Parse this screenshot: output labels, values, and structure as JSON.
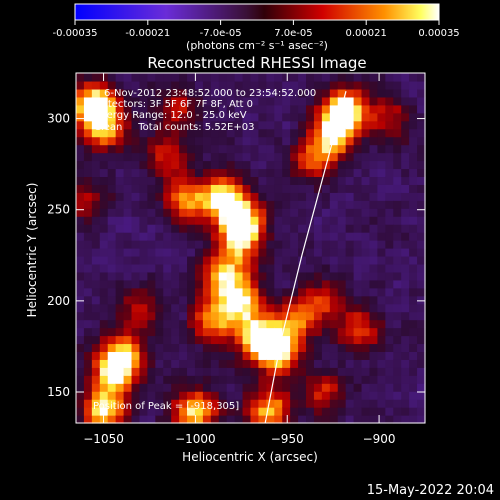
{
  "chart_data": {
    "type": "heatmap",
    "title": "Reconstructed RHESSI Image",
    "colorbar": {
      "ticks": [
        "-0.00035",
        "-0.00021",
        "-7.0e-05",
        "7.0e-05",
        "0.00021",
        "0.00035"
      ],
      "range": [
        -0.00035,
        0.00035
      ],
      "units": "(photons cm⁻² s⁻¹ asec⁻²)"
    },
    "xlabel": "Heliocentric X (arcsec)",
    "ylabel": "Heliocentric Y (arcsec)",
    "xlim": [
      -1065,
      -875
    ],
    "ylim": [
      133,
      325
    ],
    "xticks": [
      -1050,
      -1000,
      -950,
      -900
    ],
    "yticks": [
      150,
      200,
      250,
      300
    ],
    "annotations": [
      "6-Nov-2012 23:48:52.000 to 23:54:52.000",
      "Detectors: 3F 5F 6F 7F 8F, Att 0",
      "Energy Range: 12.0 - 25.0 keV",
      "Clean     Total counts: 5.52E+03"
    ],
    "peak_label": "Position of Peak = [-918,305]",
    "peak": [
      -918,
      305
    ],
    "limb": [
      [
        -962,
        133
      ],
      [
        -953,
        180
      ],
      [
        -942,
        225
      ],
      [
        -930,
        270
      ],
      [
        -918,
        315
      ]
    ],
    "sources": [
      {
        "x": -1055,
        "y": 308,
        "amp": 1.0
      },
      {
        "x": -1050,
        "y": 295,
        "amp": 0.7
      },
      {
        "x": -1005,
        "y": 255,
        "amp": 0.7
      },
      {
        "x": -985,
        "y": 258,
        "amp": 0.85
      },
      {
        "x": -975,
        "y": 245,
        "amp": 0.9
      },
      {
        "x": -975,
        "y": 232,
        "amp": 0.65
      },
      {
        "x": -985,
        "y": 215,
        "amp": 0.75
      },
      {
        "x": -975,
        "y": 200,
        "amp": 0.8
      },
      {
        "x": -990,
        "y": 190,
        "amp": 0.7
      },
      {
        "x": -965,
        "y": 180,
        "amp": 0.95
      },
      {
        "x": -955,
        "y": 172,
        "amp": 0.85
      },
      {
        "x": -945,
        "y": 190,
        "amp": 0.6
      },
      {
        "x": -930,
        "y": 200,
        "amp": 0.45
      },
      {
        "x": -910,
        "y": 185,
        "amp": 0.5
      },
      {
        "x": -918,
        "y": 305,
        "amp": 1.0
      },
      {
        "x": -925,
        "y": 292,
        "amp": 0.8
      },
      {
        "x": -935,
        "y": 278,
        "amp": 0.55
      },
      {
        "x": -1040,
        "y": 170,
        "amp": 0.8
      },
      {
        "x": -1045,
        "y": 160,
        "amp": 0.7
      },
      {
        "x": -1030,
        "y": 195,
        "amp": 0.45
      },
      {
        "x": -1050,
        "y": 140,
        "amp": 0.9
      },
      {
        "x": -1000,
        "y": 140,
        "amp": 0.85
      },
      {
        "x": -960,
        "y": 140,
        "amp": 0.8
      },
      {
        "x": -930,
        "y": 150,
        "amp": 0.45
      },
      {
        "x": -1015,
        "y": 280,
        "amp": 0.45
      },
      {
        "x": -1010,
        "y": 305,
        "amp": 0.4
      },
      {
        "x": -1060,
        "y": 255,
        "amp": 0.35
      },
      {
        "x": -895,
        "y": 300,
        "amp": 0.35
      }
    ]
  },
  "footer": {
    "timestamp": "15-May-2022 20:04"
  }
}
